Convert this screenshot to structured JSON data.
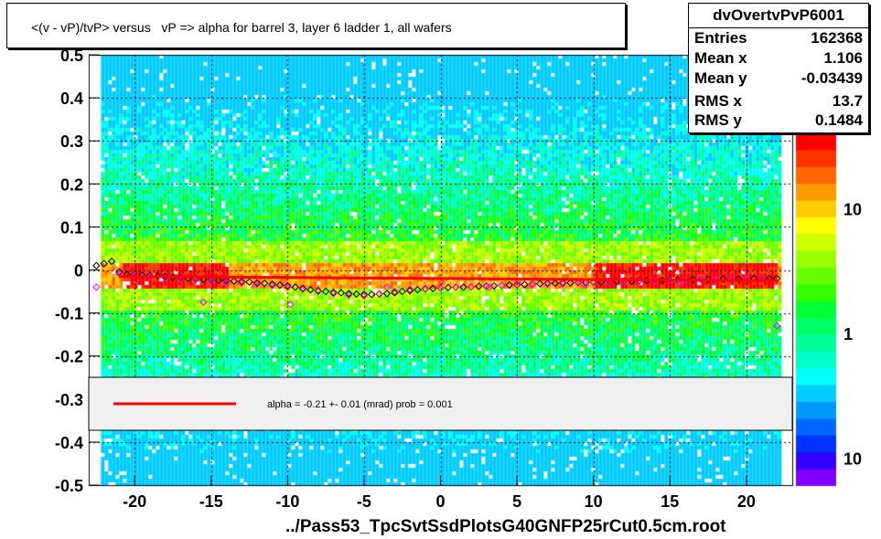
{
  "title": "<(v - vP)/tvP> versus   vP => alpha for barrel 3, layer 6 ladder 1, all wafers",
  "stats": {
    "name": "dvOvertvPvP6001",
    "rows": [
      {
        "label": "Entries",
        "value": "162368"
      },
      {
        "label": "Mean x",
        "value": "1.106"
      },
      {
        "label": "Mean y",
        "value": "-0.03439"
      },
      {
        "label": "RMS x",
        "value": "13.7"
      },
      {
        "label": "RMS y",
        "value": "0.1484"
      }
    ]
  },
  "legend": {
    "text": "alpha =   -0.21 +-  0.01 (mrad) prob = 0.001",
    "line_color": "#ff0000"
  },
  "footer": "../Pass53_TpcSvtSsdPlotsG40GNFP25rCut0.5cm.root",
  "chart_data": {
    "type": "heatmap",
    "title": "<(v - vP)/tvP> versus   vP => alpha for barrel 3, layer 6 ladder 1, all wafers",
    "xlabel": "",
    "ylabel": "",
    "xlim": [
      -23,
      23
    ],
    "ylim": [
      -0.5,
      0.5
    ],
    "x_ticks": [
      "-20",
      "-15",
      "-10",
      "-5",
      "0",
      "5",
      "10",
      "15",
      "20"
    ],
    "x_tick_values": [
      -20,
      -15,
      -10,
      -5,
      0,
      5,
      10,
      15,
      20
    ],
    "y_ticks": [
      "-0.5",
      "-0.4",
      "-0.3",
      "-0.2",
      "-0.1",
      "0",
      "0.1",
      "0.2",
      "0.3",
      "0.4",
      "0.5"
    ],
    "y_tick_values": [
      -0.5,
      -0.4,
      -0.3,
      -0.2,
      -0.1,
      0,
      0.1,
      0.2,
      0.3,
      0.4,
      0.5
    ],
    "grid": true,
    "color_scale": {
      "type": "log",
      "labels": [
        "10",
        "1",
        "10"
      ],
      "label_values": [
        10,
        1,
        0.1
      ],
      "colors": [
        "#8000ff",
        "#3300ff",
        "#0033ff",
        "#0066ff",
        "#0099ff",
        "#00ccff",
        "#00ffff",
        "#00ffcc",
        "#00ff99",
        "#00ff66",
        "#00ff33",
        "#33ff00",
        "#66ff00",
        "#99ff00",
        "#ccff00",
        "#ffff00",
        "#ffcc00",
        "#ff9900",
        "#ff6600",
        "#ff3300",
        "#ff0000"
      ]
    },
    "band": {
      "y_center": -0.01,
      "dense_x_ranges": [
        [
          -21,
          -14
        ],
        [
          10,
          22
        ]
      ]
    },
    "profile_black": {
      "x": [
        -22.5,
        -22,
        -21.5,
        -21,
        -20.5,
        -20,
        -19.5,
        -19,
        -18.5,
        -18,
        -17.5,
        -17,
        -16.5,
        -16,
        -15.5,
        -15,
        -14.5,
        -14,
        -13.5,
        -13,
        -12.5,
        -12,
        -11.5,
        -11,
        -10.5,
        -10,
        -9.5,
        -9,
        -8.5,
        -8,
        -7.5,
        -7,
        -6.5,
        -6,
        -5.5,
        -5,
        -4.5,
        -4,
        -3.5,
        -3,
        -2.5,
        -2,
        -1.5,
        -1,
        -0.5,
        0,
        0.5,
        1,
        1.5,
        2,
        2.5,
        3,
        3.5,
        4,
        4.5,
        5,
        5.5,
        6,
        6.5,
        7,
        7.5,
        8,
        8.5,
        9,
        9.5,
        10,
        10.5,
        11,
        11.5,
        12,
        12.5,
        13,
        13.5,
        14,
        14.5,
        15,
        15.5,
        16,
        16.5,
        17,
        17.5,
        18,
        18.5,
        19,
        19.5,
        20,
        20.5,
        21,
        21.5,
        22
      ],
      "y": [
        0.01,
        0.015,
        0.02,
        -0.005,
        -0.01,
        -0.01,
        -0.012,
        -0.013,
        -0.014,
        -0.015,
        -0.017,
        -0.018,
        -0.02,
        -0.02,
        -0.022,
        -0.023,
        -0.024,
        -0.025,
        -0.026,
        -0.027,
        -0.028,
        -0.03,
        -0.031,
        -0.033,
        -0.035,
        -0.037,
        -0.04,
        -0.043,
        -0.046,
        -0.048,
        -0.05,
        -0.052,
        -0.053,
        -0.055,
        -0.056,
        -0.057,
        -0.057,
        -0.056,
        -0.055,
        -0.053,
        -0.05,
        -0.048,
        -0.046,
        -0.044,
        -0.043,
        -0.042,
        -0.041,
        -0.04,
        -0.04,
        -0.039,
        -0.038,
        -0.038,
        -0.037,
        -0.036,
        -0.035,
        -0.034,
        -0.034,
        -0.033,
        -0.032,
        -0.031,
        -0.031,
        -0.03,
        -0.03,
        -0.029,
        -0.029,
        -0.028,
        -0.028,
        -0.027,
        -0.027,
        -0.026,
        -0.026,
        -0.025,
        -0.025,
        -0.024,
        -0.024,
        -0.023,
        -0.023,
        -0.023,
        -0.022,
        -0.022,
        -0.022,
        -0.021,
        -0.021,
        -0.021,
        -0.021,
        -0.02,
        -0.02,
        -0.02,
        -0.02,
        -0.02
      ]
    },
    "profile_pink": {
      "x": [
        -22.5,
        -21,
        -20,
        -19,
        -18,
        -17,
        -16,
        -15.5,
        -15,
        -14,
        -13,
        -12,
        -11,
        -10,
        -9.8,
        -9,
        -8,
        -7,
        -6,
        -5,
        -4,
        -3.5,
        -3,
        -2,
        -1,
        0,
        1,
        2,
        3,
        3.2,
        4,
        5,
        6,
        7,
        8,
        9,
        9.5,
        10,
        11,
        12,
        13,
        14,
        15,
        15.7,
        16,
        17,
        18,
        19,
        20,
        21,
        22
      ],
      "y": [
        -0.04,
        -0.01,
        -0.012,
        -0.015,
        -0.018,
        -0.02,
        -0.022,
        -0.075,
        -0.025,
        -0.028,
        -0.03,
        -0.033,
        -0.036,
        -0.04,
        -0.08,
        -0.045,
        -0.05,
        -0.055,
        -0.058,
        -0.06,
        -0.055,
        -0.04,
        -0.05,
        -0.045,
        -0.043,
        -0.042,
        -0.04,
        -0.039,
        -0.037,
        -0.04,
        -0.036,
        -0.035,
        -0.034,
        -0.033,
        -0.032,
        -0.03,
        -0.035,
        -0.029,
        -0.028,
        -0.027,
        -0.026,
        -0.025,
        -0.024,
        -0.03,
        -0.023,
        -0.022,
        -0.021,
        -0.021,
        -0.02,
        -0.02,
        -0.13
      ]
    },
    "fit_line": {
      "x": [
        -21,
        22
      ],
      "y": [
        -0.015,
        -0.025
      ],
      "color": "#ff0000"
    }
  }
}
